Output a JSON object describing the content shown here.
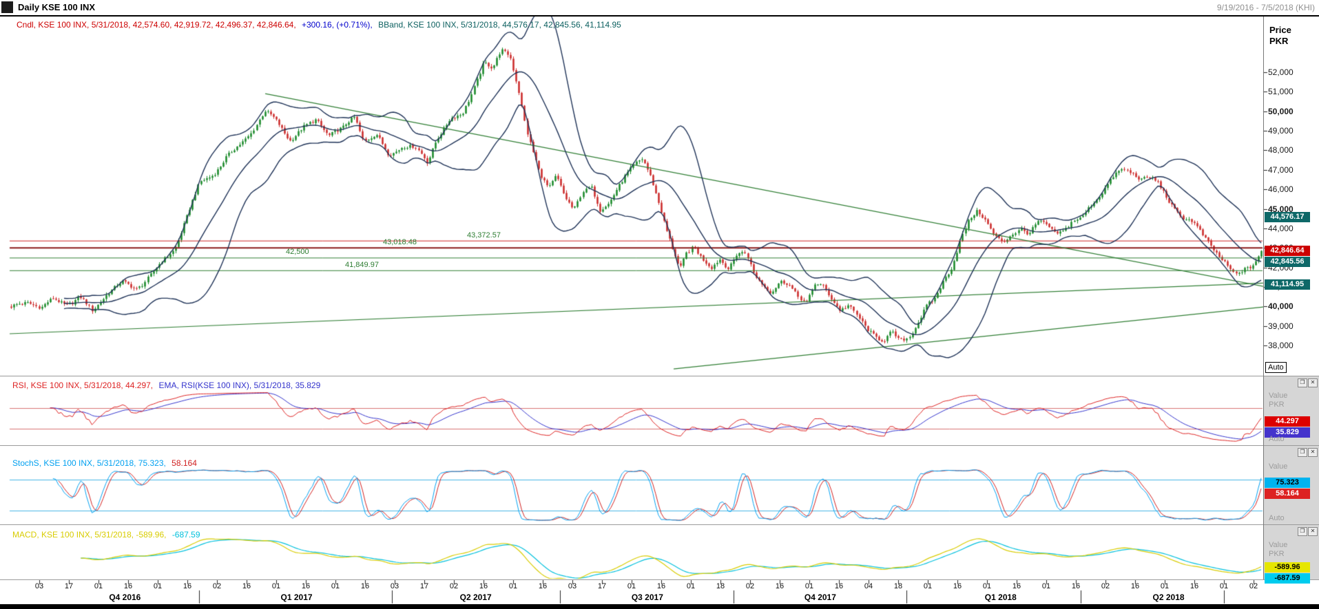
{
  "window": {
    "title": "Daily KSE 100 INX",
    "date_range": "9/19/2016 - 7/5/2018 (KHI)",
    "controls": {
      "restore_glyph": "❐",
      "close_glyph": "✕"
    }
  },
  "price_panel": {
    "legend_cndl": "Cndl, KSE 100 INX, 5/31/2018, 42,574.60, 42,919.72, 42,496.37, 42,846.64,",
    "legend_change": "+300.16, (+0.71%),",
    "legend_bband": "BBand, KSE 100 INX, 5/31/2018, 44,576.17, 42,845.56, 41,114.95",
    "axis_label_line1": "Price",
    "axis_label_line2": "PKR",
    "auto_button": "Auto",
    "value_boxes": [
      {
        "text": "44,576.17",
        "bg": "#0e6868",
        "fg": "#ffffff",
        "price": 44576.17
      },
      {
        "text": "42,846.64",
        "bg": "#cc0000",
        "fg": "#ffffff",
        "price": 42846.64
      },
      {
        "text": "42,845.56",
        "bg": "#0e6868",
        "fg": "#ffffff",
        "price": 42845.56
      },
      {
        "text": "41,114.95",
        "bg": "#0e6868",
        "fg": "#ffffff",
        "price": 41114.95
      }
    ],
    "level_labels": [
      {
        "text": "43,372.57"
      },
      {
        "text": "43,018.48"
      },
      {
        "text": "42,500"
      },
      {
        "text": "41,849.97"
      }
    ]
  },
  "rsi_panel": {
    "legend_rsi": "RSI, KSE 100 INX, 5/31/2018, 44.297,",
    "legend_ema": "EMA, RSI(KSE 100 INX), 5/31/2018, 35.829",
    "value_label": "Value",
    "currency_label": "PKR",
    "auto_label": "Auto",
    "value_boxes": [
      {
        "text": "44.297",
        "bg": "#dd0000",
        "fg": "#ffffff"
      },
      {
        "text": "35.829",
        "bg": "#4433cc",
        "fg": "#ffffff"
      }
    ]
  },
  "stoch_panel": {
    "legend_main": "StochS, KSE 100 INX, 5/31/2018, 75.323,",
    "legend_second": "58.164",
    "value_label": "Value",
    "auto_label": "Auto",
    "value_boxes": [
      {
        "text": "75.323",
        "bg": "#00b4f0",
        "fg": "#000000"
      },
      {
        "text": "58.164",
        "bg": "#dd2222",
        "fg": "#ffffff"
      }
    ]
  },
  "macd_panel": {
    "legend_main": "MACD, KSE 100 INX, 5/31/2018, -589.96,",
    "legend_second": "-687.59",
    "value_label": "Value",
    "currency_label": "PKR",
    "value_boxes": [
      {
        "text": "-589.96",
        "bg": "#e6e600",
        "fg": "#000000"
      },
      {
        "text": "-687.59",
        "bg": "#00ccee",
        "fg": "#000000"
      }
    ]
  },
  "chart_data": {
    "type": "candlestick",
    "symbol": "KSE 100 INX",
    "timeframe": "Daily",
    "date_range": [
      "9/19/2016",
      "7/5/2018"
    ],
    "last_bar": {
      "date": "5/31/2018",
      "open": 42574.6,
      "high": 42919.72,
      "low": 42496.37,
      "close": 42846.64,
      "change": 300.16,
      "change_pct": 0.71
    },
    "bollinger": {
      "date": "5/31/2018",
      "upper": 44576.17,
      "middle": 42845.56,
      "lower": 41114.95,
      "period": 20,
      "mult": 2
    },
    "indicators": {
      "rsi": {
        "value": 44.297,
        "ema": 35.829,
        "overbought": 70,
        "oversold": 30
      },
      "stochastic": {
        "k": 75.323,
        "d": 58.164,
        "upper": 80,
        "lower": 20
      },
      "macd": {
        "macd": -589.96,
        "signal": -687.59
      }
    },
    "price_axis": {
      "min": 37800,
      "max": 52600,
      "ticks": [
        {
          "value": 52000,
          "label": "52,000",
          "bold": false
        },
        {
          "value": 51000,
          "label": "51,000",
          "bold": false
        },
        {
          "value": 50000,
          "label": "50,000",
          "bold": true
        },
        {
          "value": 49000,
          "label": "49,000",
          "bold": false
        },
        {
          "value": 48000,
          "label": "48,000",
          "bold": false
        },
        {
          "value": 47000,
          "label": "47,000",
          "bold": false
        },
        {
          "value": 46000,
          "label": "46,000",
          "bold": false
        },
        {
          "value": 45000,
          "label": "45,000",
          "bold": true
        },
        {
          "value": 44000,
          "label": "44,000",
          "bold": false
        },
        {
          "value": 43000,
          "label": "43,000",
          "bold": false
        },
        {
          "value": 42000,
          "label": "42,000",
          "bold": false
        },
        {
          "value": 41000,
          "label": "41,000",
          "bold": false
        },
        {
          "value": 40000,
          "label": "40,000",
          "bold": true
        },
        {
          "value": 39000,
          "label": "39,000",
          "bold": false
        },
        {
          "value": 38000,
          "label": "38,000",
          "bold": false
        }
      ]
    },
    "horizontal_levels": [
      {
        "price": 43372.57,
        "color": "#cc2222",
        "width": 1
      },
      {
        "price": 43018.48,
        "color": "#8b1a1a",
        "width": 2
      },
      {
        "price": 42500,
        "color": "#2e7d32",
        "width": 1
      },
      {
        "price": 41849.97,
        "color": "#2e7d32",
        "width": 1
      }
    ],
    "trendlines": [
      {
        "x1": 0.204,
        "p1": 50900,
        "x2": 1.035,
        "p2": 40600,
        "color": "#2e7d32"
      },
      {
        "x1": 0.0,
        "p1": 38600,
        "x2": 1.04,
        "p2": 41300,
        "color": "#2e7d32"
      },
      {
        "x1": 0.53,
        "p1": 36800,
        "x2": 1.02,
        "p2": 40100,
        "color": "#2e7d32"
      }
    ],
    "bars": 449,
    "close_waypoints": [
      [
        0.0,
        39900
      ],
      [
        0.014,
        40100
      ],
      [
        0.024,
        39800
      ],
      [
        0.034,
        40400
      ],
      [
        0.045,
        40300
      ],
      [
        0.055,
        40600
      ],
      [
        0.065,
        39700
      ],
      [
        0.076,
        40500
      ],
      [
        0.089,
        41100
      ],
      [
        0.1,
        41000
      ],
      [
        0.11,
        41700
      ],
      [
        0.12,
        42300
      ],
      [
        0.131,
        42900
      ],
      [
        0.141,
        44500
      ],
      [
        0.151,
        46200
      ],
      [
        0.162,
        46900
      ],
      [
        0.172,
        47800
      ],
      [
        0.182,
        48300
      ],
      [
        0.192,
        48900
      ],
      [
        0.203,
        49800
      ],
      [
        0.213,
        49300
      ],
      [
        0.223,
        48600
      ],
      [
        0.234,
        49300
      ],
      [
        0.244,
        49700
      ],
      [
        0.254,
        48800
      ],
      [
        0.265,
        48900
      ],
      [
        0.275,
        49600
      ],
      [
        0.282,
        48500
      ],
      [
        0.292,
        48900
      ],
      [
        0.302,
        47900
      ],
      [
        0.313,
        48300
      ],
      [
        0.323,
        48000
      ],
      [
        0.333,
        47200
      ],
      [
        0.34,
        48500
      ],
      [
        0.351,
        49600
      ],
      [
        0.361,
        50000
      ],
      [
        0.371,
        51500
      ],
      [
        0.378,
        52500
      ],
      [
        0.385,
        52000
      ],
      [
        0.392,
        53000
      ],
      [
        0.399,
        52800
      ],
      [
        0.406,
        51000
      ],
      [
        0.412,
        49000
      ],
      [
        0.416,
        48200
      ],
      [
        0.423,
        47000
      ],
      [
        0.43,
        46300
      ],
      [
        0.436,
        46800
      ],
      [
        0.443,
        45500
      ],
      [
        0.45,
        44800
      ],
      [
        0.457,
        45800
      ],
      [
        0.464,
        46000
      ],
      [
        0.471,
        44800
      ],
      [
        0.478,
        45300
      ],
      [
        0.485,
        46300
      ],
      [
        0.491,
        46900
      ],
      [
        0.498,
        47300
      ],
      [
        0.505,
        47500
      ],
      [
        0.512,
        46500
      ],
      [
        0.519,
        45000
      ],
      [
        0.524,
        43800
      ],
      [
        0.529,
        42800
      ],
      [
        0.535,
        41800
      ],
      [
        0.54,
        42800
      ],
      [
        0.546,
        43300
      ],
      [
        0.553,
        42600
      ],
      [
        0.56,
        42000
      ],
      [
        0.567,
        42400
      ],
      [
        0.574,
        41900
      ],
      [
        0.581,
        42600
      ],
      [
        0.588,
        42500
      ],
      [
        0.594,
        41500
      ],
      [
        0.601,
        41200
      ],
      [
        0.608,
        40900
      ],
      [
        0.615,
        41400
      ],
      [
        0.622,
        41200
      ],
      [
        0.629,
        40600
      ],
      [
        0.636,
        40200
      ],
      [
        0.643,
        41000
      ],
      [
        0.649,
        40800
      ],
      [
        0.656,
        40300
      ],
      [
        0.663,
        39900
      ],
      [
        0.67,
        40200
      ],
      [
        0.677,
        39600
      ],
      [
        0.684,
        39000
      ],
      [
        0.691,
        38600
      ],
      [
        0.698,
        38200
      ],
      [
        0.704,
        38500
      ],
      [
        0.711,
        38000
      ],
      [
        0.718,
        38300
      ],
      [
        0.725,
        39200
      ],
      [
        0.732,
        40100
      ],
      [
        0.739,
        40500
      ],
      [
        0.746,
        41500
      ],
      [
        0.753,
        42200
      ],
      [
        0.759,
        43300
      ],
      [
        0.766,
        44200
      ],
      [
        0.773,
        44700
      ],
      [
        0.78,
        44300
      ],
      [
        0.787,
        43600
      ],
      [
        0.794,
        43300
      ],
      [
        0.801,
        43800
      ],
      [
        0.808,
        44200
      ],
      [
        0.814,
        43900
      ],
      [
        0.821,
        44300
      ],
      [
        0.828,
        44000
      ],
      [
        0.835,
        43600
      ],
      [
        0.842,
        43800
      ],
      [
        0.849,
        44300
      ],
      [
        0.856,
        44500
      ],
      [
        0.863,
        45300
      ],
      [
        0.869,
        45800
      ],
      [
        0.876,
        46300
      ],
      [
        0.883,
        46700
      ],
      [
        0.89,
        46900
      ],
      [
        0.897,
        46700
      ],
      [
        0.904,
        46400
      ],
      [
        0.911,
        46500
      ],
      [
        0.918,
        46300
      ],
      [
        0.924,
        45800
      ],
      [
        0.931,
        45200
      ],
      [
        0.938,
        44600
      ],
      [
        0.945,
        44300
      ],
      [
        0.952,
        43700
      ],
      [
        0.959,
        43100
      ],
      [
        0.966,
        42400
      ],
      [
        0.973,
        41900
      ],
      [
        0.979,
        41600
      ],
      [
        0.986,
        42100
      ],
      [
        0.993,
        42300
      ],
      [
        1.0,
        42847
      ]
    ],
    "x_axis": {
      "date_labels": [
        "03",
        "17",
        "01",
        "16",
        "01",
        "16",
        "02",
        "16",
        "01",
        "16",
        "01",
        "16",
        "03",
        "17",
        "02",
        "16",
        "01",
        "16",
        "03",
        "17",
        "01",
        "16",
        "01",
        "18",
        "02",
        "16",
        "01",
        "16",
        "04",
        "18",
        "01",
        "16",
        "01",
        "16",
        "01",
        "16",
        "02",
        "16",
        "01",
        "16",
        "01",
        "02"
      ],
      "quarter_labels": [
        "Q4 2016",
        "Q1 2017",
        "Q2 2017",
        "Q3 2017",
        "Q4 2017",
        "Q1 2018",
        "Q2 2018"
      ],
      "quarter_centers": [
        0.092,
        0.229,
        0.372,
        0.509,
        0.647,
        0.791,
        0.925
      ],
      "quarter_bounds": [
        0.151,
        0.305,
        0.439,
        0.578,
        0.716,
        0.855,
        0.969
      ]
    },
    "colors": {
      "up": "#1a8a2a",
      "down": "#cc2b2b",
      "bband": "#1d3156",
      "legend_cndl": "#cc0000",
      "legend_change": "#0000cc",
      "legend_bband": "#0d6060",
      "rsi": "#dd2222",
      "rsi_ema": "#3333cc",
      "rsi_bands": "#d87070",
      "stoch_k": "#00a0f0",
      "stoch_d": "#d02020",
      "stoch_bands": "#45b5e5",
      "macd": "#d8cc00",
      "macd_signal": "#00c0dc",
      "trend": "#2e7d32",
      "level_label": "#2e7d32"
    }
  }
}
